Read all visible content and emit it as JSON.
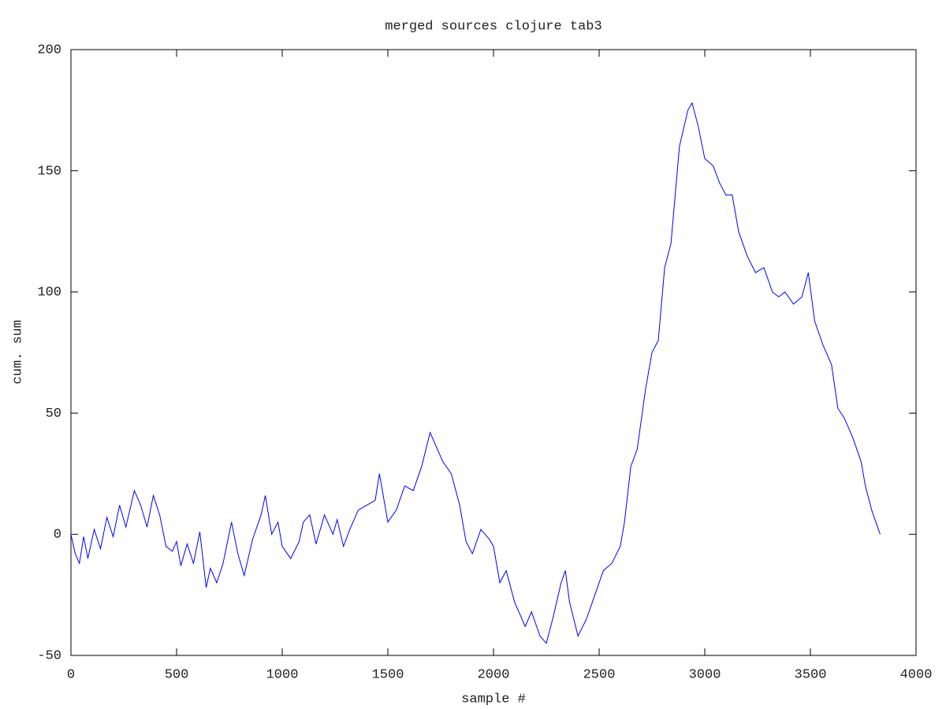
{
  "chart_data": {
    "type": "line",
    "title": "merged sources clojure tab3",
    "x_label": "sample #",
    "y_label": "cum. sum",
    "xlim": [
      0,
      4000
    ],
    "xticks": [
      0,
      500,
      1000,
      1500,
      2000,
      2500,
      3000,
      3500,
      4000
    ],
    "ylim": [
      -50,
      200
    ],
    "yticks": [
      -50,
      0,
      50,
      100,
      150,
      200
    ],
    "grid": false,
    "series": [
      {
        "color": "#0000ff",
        "x": [
          0,
          20,
          40,
          60,
          80,
          110,
          140,
          170,
          200,
          230,
          260,
          300,
          330,
          360,
          390,
          420,
          450,
          480,
          500,
          520,
          550,
          580,
          610,
          640,
          660,
          690,
          720,
          760,
          790,
          820,
          860,
          900,
          920,
          950,
          980,
          1000,
          1040,
          1080,
          1100,
          1130,
          1160,
          1200,
          1240,
          1260,
          1290,
          1320,
          1360,
          1400,
          1440,
          1460,
          1500,
          1540,
          1580,
          1620,
          1660,
          1700,
          1720,
          1760,
          1800,
          1840,
          1870,
          1900,
          1940,
          1980,
          2000,
          2030,
          2060,
          2100,
          2150,
          2180,
          2220,
          2250,
          2280,
          2320,
          2340,
          2360,
          2400,
          2440,
          2480,
          2520,
          2560,
          2600,
          2620,
          2650,
          2680,
          2720,
          2750,
          2780,
          2810,
          2840,
          2880,
          2920,
          2940,
          2970,
          3000,
          3040,
          3070,
          3100,
          3130,
          3160,
          3200,
          3240,
          3280,
          3320,
          3350,
          3380,
          3420,
          3460,
          3490,
          3520,
          3560,
          3600,
          3630,
          3660,
          3700,
          3740,
          3760,
          3790,
          3830
        ],
        "values": [
          0,
          -8,
          -12,
          -1,
          -10,
          2,
          -6,
          7,
          -1,
          12,
          3,
          18,
          12,
          3,
          16,
          8,
          -5,
          -7,
          -3,
          -13,
          -4,
          -12,
          1,
          -22,
          -14,
          -20,
          -12,
          5,
          -8,
          -17,
          -2,
          8,
          16,
          0,
          5,
          -5,
          -10,
          -3,
          5,
          8,
          -4,
          8,
          0,
          6,
          -5,
          2,
          10,
          12,
          14,
          25,
          5,
          10,
          20,
          18,
          28,
          42,
          38,
          30,
          25,
          12,
          -3,
          -8,
          2,
          -2,
          -5,
          -20,
          -15,
          -28,
          -38,
          -32,
          -42,
          -45,
          -35,
          -20,
          -15,
          -28,
          -42,
          -35,
          -25,
          -15,
          -12,
          -5,
          5,
          28,
          35,
          60,
          75,
          80,
          110,
          120,
          160,
          175,
          178,
          168,
          155,
          152,
          145,
          140,
          140,
          125,
          115,
          108,
          110,
          100,
          98,
          100,
          95,
          98,
          108,
          88,
          78,
          70,
          52,
          48,
          40,
          30,
          20,
          10,
          0
        ]
      }
    ]
  }
}
